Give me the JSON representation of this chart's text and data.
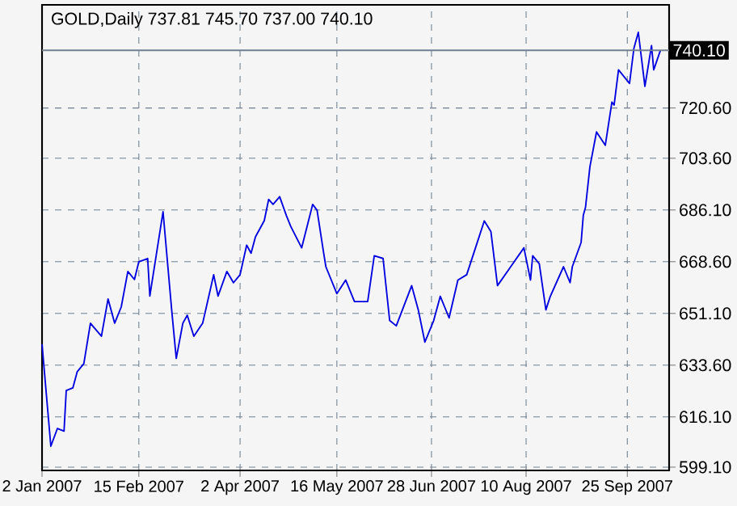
{
  "chart_data": {
    "type": "line",
    "title": "GOLD,Daily 737.81 745.70 737.00 740.10",
    "x": [
      "2007-01-02",
      "2007-01-06",
      "2007-01-09",
      "2007-01-12",
      "2007-01-13",
      "2007-01-16",
      "2007-01-18",
      "2007-01-21",
      "2007-01-24",
      "2007-01-26",
      "2007-01-29",
      "2007-02-01",
      "2007-02-04",
      "2007-02-07",
      "2007-02-10",
      "2007-02-13",
      "2007-02-15",
      "2007-02-19",
      "2007-02-20",
      "2007-02-26",
      "2007-03-02",
      "2007-03-04",
      "2007-03-07",
      "2007-03-09",
      "2007-03-12",
      "2007-03-16",
      "2007-03-21",
      "2007-03-23",
      "2007-03-27",
      "2007-03-30",
      "2007-04-02",
      "2007-04-05",
      "2007-04-07",
      "2007-04-09",
      "2007-04-13",
      "2007-04-15",
      "2007-04-17",
      "2007-04-20",
      "2007-04-23",
      "2007-04-25",
      "2007-04-30",
      "2007-05-05",
      "2007-05-07",
      "2007-05-10",
      "2007-05-11",
      "2007-05-16",
      "2007-05-20",
      "2007-05-24",
      "2007-05-30",
      "2007-06-02",
      "2007-06-06",
      "2007-06-09",
      "2007-06-12",
      "2007-06-19",
      "2007-06-22",
      "2007-06-25",
      "2007-06-29",
      "2007-07-02",
      "2007-07-06",
      "2007-07-10",
      "2007-07-14",
      "2007-07-18",
      "2007-07-22",
      "2007-07-25",
      "2007-07-28",
      "2007-08-03",
      "2007-08-09",
      "2007-08-12",
      "2007-08-13",
      "2007-08-16",
      "2007-08-19",
      "2007-08-21",
      "2007-08-27",
      "2007-08-30",
      "2007-08-31",
      "2007-09-04",
      "2007-09-05",
      "2007-09-06",
      "2007-09-08",
      "2007-09-11",
      "2007-09-15",
      "2007-09-18",
      "2007-09-19",
      "2007-09-21",
      "2007-09-26",
      "2007-09-28",
      "2007-09-30",
      "2007-10-03",
      "2007-10-06",
      "2007-10-07",
      "2007-10-10"
    ],
    "series": [
      {
        "color": "#0000e0",
        "values": [
          640.7,
          606.2,
          612.2,
          611.3,
          625,
          625.9,
          631.4,
          634.1,
          647.8,
          646,
          643.4,
          656,
          647.8,
          653.3,
          665.3,
          662.6,
          668.6,
          669.7,
          657,
          685.5,
          651.6,
          635.9,
          647.8,
          650.5,
          643.4,
          647.8,
          664.2,
          657,
          665.3,
          661.5,
          664.2,
          674.2,
          671.5,
          677,
          682.5,
          689.7,
          688,
          690.6,
          684.3,
          680.6,
          673.3,
          688,
          686,
          671.5,
          666.9,
          657.8,
          662.4,
          655.1,
          655.1,
          670.6,
          669.7,
          648.7,
          646.9,
          660.5,
          652.3,
          641.4,
          648.7,
          656.9,
          649.6,
          662.4,
          664.2,
          673.3,
          682.4,
          678.8,
          660.5,
          666.9,
          673.3,
          662.4,
          670.6,
          667.9,
          652.3,
          656.9,
          666.9,
          661.5,
          666.9,
          675.1,
          684.3,
          687,
          700.7,
          712.5,
          708,
          722.6,
          721.6,
          733.5,
          728.9,
          740.8,
          746.2,
          727.9,
          741.7,
          733.5,
          740
        ]
      }
    ],
    "xlim": [
      "2007-01-02",
      "2007-10-14"
    ],
    "ylim": [
      598,
      755.5
    ],
    "xticks": [
      {
        "value": "2007-01-02",
        "label": "2 Jan 2007"
      },
      {
        "value": "2007-02-15",
        "label": "15 Feb 2007"
      },
      {
        "value": "2007-04-02",
        "label": "2 Apr 2007"
      },
      {
        "value": "2007-05-16",
        "label": "16 May 2007"
      },
      {
        "value": "2007-06-28",
        "label": "28 Jun 2007"
      },
      {
        "value": "2007-08-10",
        "label": "10 Aug 2007"
      },
      {
        "value": "2007-09-25",
        "label": "25 Sep 2007"
      }
    ],
    "yticks": [
      {
        "value": 599.1,
        "label": "599.10"
      },
      {
        "value": 616.1,
        "label": "616.10"
      },
      {
        "value": 633.6,
        "label": "633.60"
      },
      {
        "value": 651.1,
        "label": "651.10"
      },
      {
        "value": 668.6,
        "label": "668.60"
      },
      {
        "value": 686.1,
        "label": "686.10"
      },
      {
        "value": 703.6,
        "label": "703.60"
      },
      {
        "value": 720.6,
        "label": "720.60"
      }
    ],
    "ref_lines": [
      {
        "axis": "y",
        "value": 740.1,
        "label": "740.10",
        "color": "#708090",
        "line_style": "solid"
      }
    ],
    "grid": true,
    "line_style": "solid"
  }
}
